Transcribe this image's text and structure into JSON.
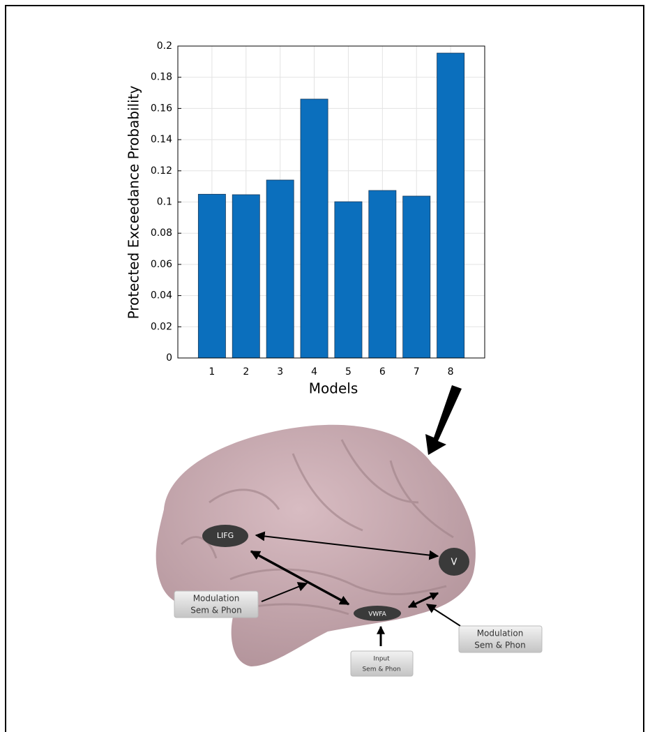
{
  "chart_data": {
    "type": "bar",
    "y_label": "Protected Exceedance Probability",
    "x_label": "Models",
    "categories": [
      "1",
      "2",
      "3",
      "4",
      "5",
      "6",
      "7",
      "8"
    ],
    "values": [
      0.105,
      0.1047,
      0.1141,
      0.166,
      0.1002,
      0.1074,
      0.1038,
      0.1955
    ],
    "color": "#0b6fbd",
    "ylim": [
      0,
      0.2
    ],
    "yticks": [
      0,
      0.02,
      0.04,
      0.06,
      0.08,
      0.1,
      0.12,
      0.14,
      0.16,
      0.18,
      0.2
    ],
    "grid": true
  },
  "diagram": {
    "nodes": [
      {
        "label": "LIFG"
      },
      {
        "label": "V"
      },
      {
        "label": "VWFA"
      }
    ],
    "boxes": [
      {
        "lines": [
          "Modulation",
          "Sem & Phon"
        ]
      },
      {
        "lines": [
          "Modulation",
          "Sem & Phon"
        ]
      },
      {
        "lines": [
          "Input",
          "Sem & Phon"
        ]
      }
    ]
  }
}
